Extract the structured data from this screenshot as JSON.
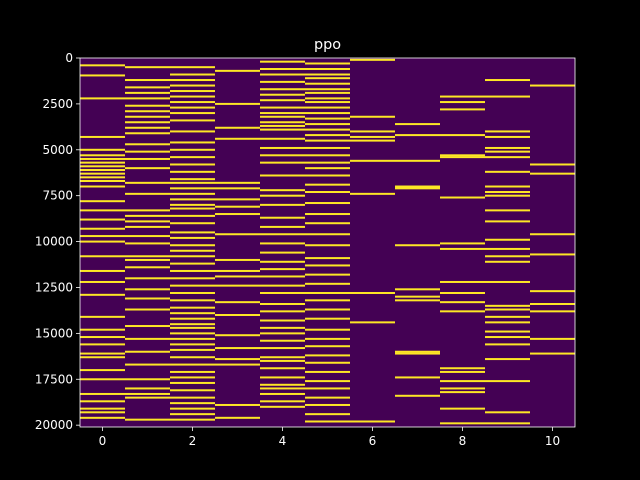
{
  "colors": {
    "figure_background": "#000000",
    "background": "#440154",
    "event": "#fde725",
    "axes": "#ffffff"
  },
  "chart_data": {
    "type": "heatmap",
    "title": "ppo",
    "xlabel": "",
    "ylabel": "",
    "xlim": [
      -0.5,
      10.5
    ],
    "ylim": [
      20100,
      0
    ],
    "y_inverted": true,
    "xticks": [
      0,
      2,
      4,
      6,
      8,
      10
    ],
    "yticks": [
      0,
      2500,
      5000,
      7500,
      10000,
      12500,
      15000,
      17500,
      20000
    ],
    "columns": [
      0,
      1,
      2,
      3,
      4,
      5,
      6,
      7,
      8,
      9,
      10
    ],
    "colormap": "viridis",
    "value_range": [
      0,
      1
    ],
    "grid": false,
    "legend": "none",
    "events": [
      [
        400,
        950,
        2200,
        4300,
        5000,
        5300,
        5500,
        5700,
        5900,
        6100,
        6300,
        6500,
        6700,
        7000,
        7800,
        8300,
        8800,
        9300,
        9700,
        10000,
        10800,
        11600,
        12200,
        12900,
        14100,
        14800,
        15200,
        15600,
        16100,
        16300,
        17000,
        17500,
        18300,
        18700,
        19100,
        19300,
        19600
      ],
      [
        500,
        1200,
        1600,
        1900,
        2200,
        2600,
        2900,
        3200,
        3500,
        3800,
        4100,
        4700,
        5100,
        5500,
        6000,
        6800,
        7400,
        8300,
        8600,
        8900,
        9200,
        9700,
        10100,
        10800,
        11000,
        11400,
        12000,
        12600,
        13100,
        13700,
        14600,
        15300,
        16000,
        16700,
        17500,
        18000,
        18300,
        18500,
        19700
      ],
      [
        500,
        900,
        1200,
        1500,
        1800,
        2100,
        2400,
        2700,
        3000,
        3400,
        4000,
        4600,
        5000,
        5400,
        5800,
        6200,
        6600,
        6800,
        7100,
        7400,
        7700,
        8000,
        8200,
        8600,
        9000,
        9500,
        9800,
        10200,
        10500,
        10800,
        11200,
        11600,
        12000,
        12400,
        12800,
        13200,
        13600,
        13900,
        14200,
        14500,
        14700,
        15000,
        15300,
        15600,
        15900,
        16300,
        16700,
        17100,
        17400,
        17700,
        18100,
        18500,
        18800,
        19100,
        19400,
        19700
      ],
      [
        700,
        2500,
        3800,
        4400,
        6800,
        7100,
        7700,
        8100,
        8500,
        9600,
        11000,
        11600,
        11900,
        12400,
        13300,
        14000,
        15100,
        15800,
        16400,
        16700,
        18900,
        19600
      ],
      [
        200,
        600,
        900,
        1300,
        1700,
        2000,
        2300,
        2700,
        3000,
        3200,
        3500,
        3700,
        3900,
        4400,
        4900,
        5300,
        5700,
        6400,
        7200,
        7500,
        8000,
        8700,
        9200,
        9600,
        10100,
        10600,
        11100,
        11500,
        11900,
        12400,
        12800,
        13400,
        13800,
        14300,
        14700,
        15000,
        15400,
        15800,
        16300,
        16500,
        16900,
        17400,
        17800,
        18000,
        18300,
        18700,
        19000
      ],
      [
        300,
        600,
        900,
        1100,
        1400,
        1700,
        1900,
        2200,
        2400,
        2700,
        3000,
        3300,
        3600,
        3900,
        4200,
        4500,
        4900,
        5300,
        5700,
        6000,
        6400,
        6900,
        7300,
        7900,
        8500,
        9000,
        9600,
        10200,
        10900,
        11300,
        11800,
        12300,
        12800,
        13200,
        13700,
        14200,
        14800,
        15300,
        15700,
        16200,
        16600,
        17100,
        17600,
        18000,
        18500,
        18900,
        19400,
        19800
      ],
      [
        100,
        3200,
        4000,
        4300,
        4500,
        5600,
        7400,
        12800,
        14400,
        19800
      ],
      [
        3600,
        4200,
        5600,
        7000,
        7100,
        10200,
        12600,
        13000,
        13200,
        16000,
        16100,
        17400,
        18400
      ],
      [
        2100,
        2400,
        2800,
        4200,
        5300,
        5400,
        7600,
        10100,
        10400,
        12200,
        12800,
        13300,
        13800,
        16900,
        17100,
        17600,
        18000,
        18200,
        19100,
        19900
      ],
      [
        1200,
        2100,
        4000,
        4300,
        4900,
        5100,
        5400,
        6200,
        7000,
        7300,
        7500,
        8300,
        8900,
        9900,
        10400,
        10800,
        11100,
        12200,
        13500,
        13700,
        14100,
        14400,
        14900,
        15200,
        15600,
        16400,
        17600,
        19300,
        19900
      ],
      [
        1500,
        5800,
        6300,
        9600,
        10700,
        12700,
        13400,
        13800,
        15300,
        16100
      ]
    ]
  }
}
